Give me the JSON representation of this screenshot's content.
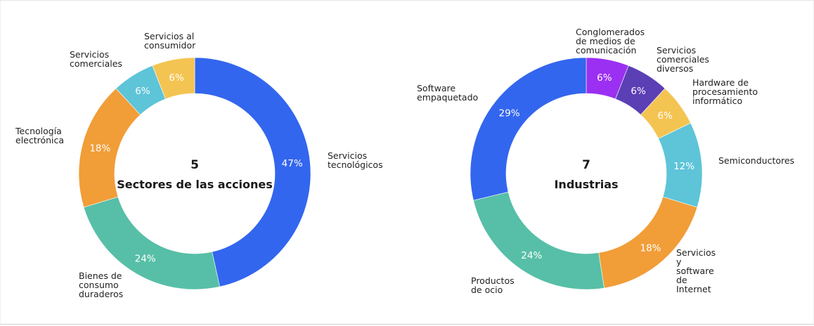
{
  "chart_data": [
    {
      "type": "pie",
      "style": "donut",
      "center_count": "5",
      "center_title": "Sectores de las acciones",
      "slices": [
        {
          "name": "Servicios tecnológicos",
          "lines": [
            "Servicios",
            "tecnológicos"
          ],
          "value": 47,
          "label": "47%",
          "color": "#3366ee"
        },
        {
          "name": "Bienes de consumo duraderos",
          "lines": [
            "Bienes de",
            "consumo",
            "duraderos"
          ],
          "value": 24,
          "label": "24%",
          "color": "#57bfa7"
        },
        {
          "name": "Tecnología electrónica",
          "lines": [
            "Tecnología",
            "electrónica"
          ],
          "value": 18,
          "label": "18%",
          "color": "#f19d38"
        },
        {
          "name": "Servicios comerciales",
          "lines": [
            "Servicios",
            "comerciales"
          ],
          "value": 6,
          "label": "6%",
          "color": "#5ec4d8"
        },
        {
          "name": "Servicios al consumidor",
          "lines": [
            "Servicios al",
            "consumidor"
          ],
          "value": 6,
          "label": "6%",
          "color": "#f4c452"
        }
      ]
    },
    {
      "type": "pie",
      "style": "donut",
      "center_count": "7",
      "center_title": "Industrias",
      "slices": [
        {
          "name": "Conglomerados de medios de comunicación",
          "lines": [
            "Conglomerados",
            "de medios de",
            "comunicación"
          ],
          "value": 6,
          "label": "6%",
          "color": "#9b30f2"
        },
        {
          "name": "Servicios comerciales diversos",
          "lines": [
            "Servicios",
            "comerciales",
            "diversos"
          ],
          "value": 6,
          "label": "6%",
          "color": "#5a3fb5"
        },
        {
          "name": "Hardware de procesamiento informático",
          "lines": [
            "Hardware de",
            "procesamiento",
            "informático"
          ],
          "value": 6,
          "label": "6%",
          "color": "#f4c452"
        },
        {
          "name": "Semiconductores",
          "lines": [
            "Semiconductores"
          ],
          "value": 12,
          "label": "12%",
          "color": "#5ec4d8"
        },
        {
          "name": "Servicios y software de Internet",
          "lines": [
            "Servicios",
            "y",
            "software",
            "de",
            "Internet"
          ],
          "value": 18,
          "label": "18%",
          "color": "#f19d38"
        },
        {
          "name": "Productos de ocio",
          "lines": [
            "Productos",
            "de ocio"
          ],
          "value": 24,
          "label": "24%",
          "color": "#57bfa7"
        },
        {
          "name": "Software empaquetado",
          "lines": [
            "Software",
            "empaquetado"
          ],
          "value": 29,
          "label": "29%",
          "color": "#3366ee"
        }
      ]
    }
  ]
}
